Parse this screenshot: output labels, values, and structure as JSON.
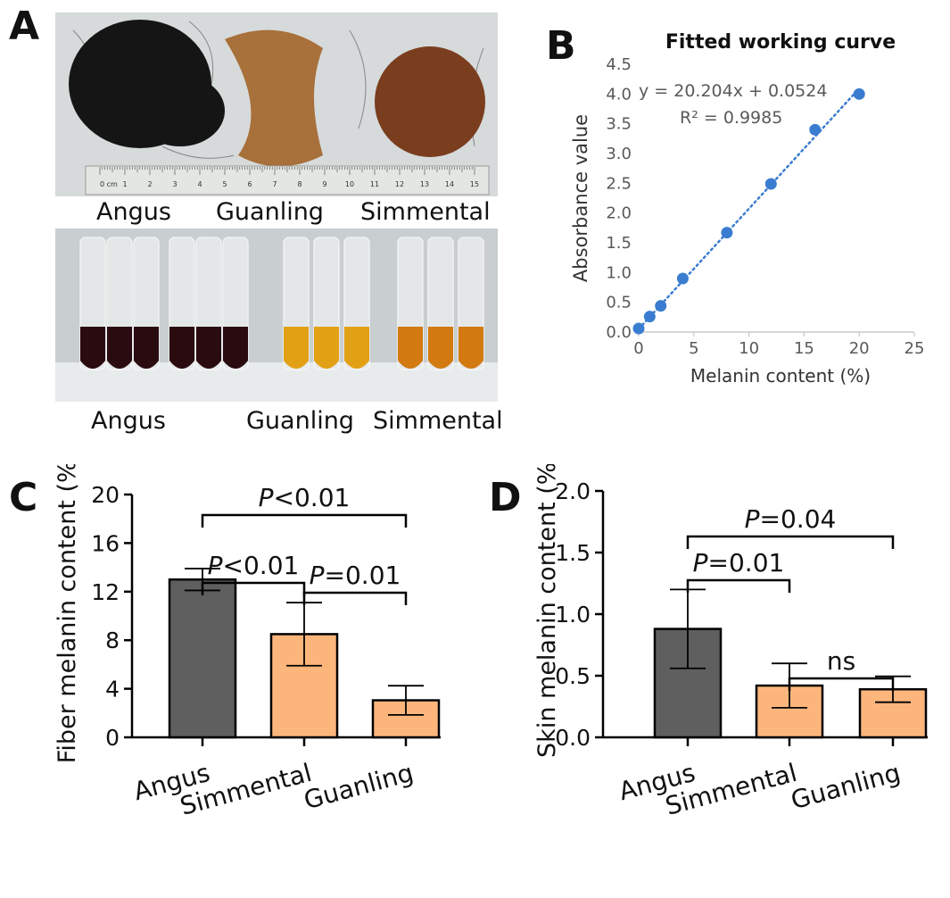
{
  "panels": {
    "a": {
      "letter": "A"
    },
    "b": {
      "letter": "B"
    },
    "c": {
      "letter": "C"
    },
    "d": {
      "letter": "D"
    }
  },
  "photo_top": {
    "labels": [
      "Angus",
      "Guanling",
      "Simmental"
    ],
    "ruler_units": "0 cm",
    "ruler_ticks": [
      "1",
      "2",
      "3",
      "4",
      "5",
      "6",
      "7",
      "8",
      "9",
      "10",
      "11",
      "12",
      "13",
      "14",
      "15"
    ],
    "colors": {
      "angus": "#151515",
      "guanling": "#a8703a",
      "simmental": "#7a3e1e",
      "bg": "#d6dadb"
    }
  },
  "photo_bottom": {
    "labels": [
      "Angus",
      "Guanling",
      "Simmental"
    ],
    "colors": {
      "angus": "#2a0c10",
      "guanling": "#e2a114",
      "simmental": "#d27a10",
      "bg": "#c9ced0"
    }
  },
  "chart_data": [
    {
      "panel": "B",
      "type": "scatter",
      "title": "Fitted working curve",
      "xlabel": "Melanin content (%)",
      "ylabel": "Absorbance value",
      "xlim": [
        0,
        25
      ],
      "ylim": [
        0,
        4.5
      ],
      "xticks": [
        "0",
        "5",
        "10",
        "15",
        "20",
        "25"
      ],
      "yticks": [
        "0.0",
        "0.5",
        "1.0",
        "1.5",
        "2.0",
        "2.5",
        "3.0",
        "3.5",
        "4.0",
        "4.5"
      ],
      "x": [
        0,
        1,
        2,
        4,
        8,
        12,
        16,
        20
      ],
      "y": [
        0.06,
        0.26,
        0.44,
        0.9,
        1.67,
        2.49,
        3.4,
        4.0
      ],
      "trendline": {
        "slope": 20.204,
        "intercept": 0.0524,
        "style": "dotted"
      },
      "annotations": [
        "y = 20.204x + 0.0524",
        "R² = 0.9985"
      ],
      "color": "#3a7dd0"
    },
    {
      "panel": "C",
      "type": "bar",
      "categories": [
        "Angus",
        "Simmental",
        "Guanling"
      ],
      "values": [
        13.0,
        8.5,
        3.05
      ],
      "errors": [
        0.9,
        2.6,
        1.2
      ],
      "colors": [
        "#5f5f5f",
        "#fcb67c",
        "#fcb67c"
      ],
      "ylabel": "Fiber melanin content  (%)",
      "ylim": [
        0,
        20
      ],
      "yticks": [
        "0",
        "4",
        "8",
        "12",
        "16",
        "20"
      ],
      "comparisons": [
        {
          "from": 0,
          "to": 2,
          "italic": "P",
          "text": "<0.01"
        },
        {
          "from": 0,
          "to": 1,
          "italic": "P",
          "text": "<0.01"
        },
        {
          "from": 1,
          "to": 2,
          "italic": "P",
          "text": "=0.01"
        }
      ]
    },
    {
      "panel": "D",
      "type": "bar",
      "categories": [
        "Angus",
        "Simmental",
        "Guanling"
      ],
      "values": [
        0.88,
        0.42,
        0.39
      ],
      "errors": [
        0.32,
        0.18,
        0.105
      ],
      "colors": [
        "#5f5f5f",
        "#fcb67c",
        "#fcb67c"
      ],
      "ylabel": "Skin melanin content  (%)",
      "ylim": [
        0,
        2.0
      ],
      "yticks": [
        "0.0",
        "0.5",
        "1.0",
        "1.5",
        "2.0"
      ],
      "comparisons": [
        {
          "from": 0,
          "to": 2,
          "italic": "P",
          "text": "=0.04"
        },
        {
          "from": 0,
          "to": 1,
          "italic": "P",
          "text": "=0.01"
        },
        {
          "from": 1,
          "to": 2,
          "italic": "",
          "text": "ns"
        }
      ]
    }
  ]
}
